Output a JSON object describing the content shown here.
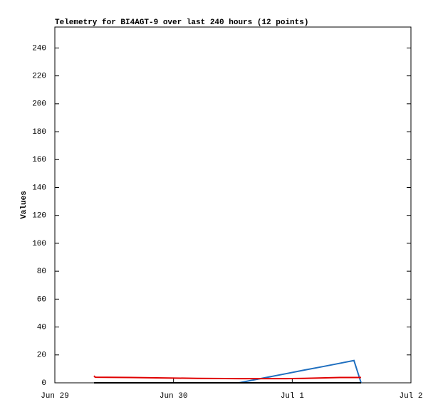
{
  "chart_data": {
    "type": "line",
    "title": "Telemetry for BI4AGT-9 over last 240 hours (12 points)",
    "ylabel": "Values",
    "x": [
      0.33,
      0.34,
      0.64,
      1.2,
      1.55,
      1.75,
      1.95,
      2.1,
      2.25,
      2.4,
      2.52,
      2.58
    ],
    "series": [
      {
        "color": "#1f6fbf",
        "values": [
          0,
          0,
          0,
          0,
          0,
          3.3,
          6.6,
          9.1,
          11.5,
          14,
          16,
          0
        ]
      },
      {
        "color": "#000000",
        "values": [
          0,
          0,
          0,
          0,
          0,
          0,
          0,
          0,
          0,
          0,
          0,
          0
        ]
      },
      {
        "color": "#e00000",
        "values": [
          5,
          4,
          3.8,
          3.2,
          3,
          3,
          3,
          3.2,
          3.5,
          3.8,
          3.8,
          3.8
        ]
      }
    ],
    "xlim": [
      0,
      3
    ],
    "xticks": [
      {
        "value": 0,
        "label": "Jun 29"
      },
      {
        "value": 1,
        "label": "Jun 30"
      },
      {
        "value": 2,
        "label": "Jul 1"
      },
      {
        "value": 3,
        "label": "Jul 2"
      }
    ],
    "ylim": [
      0,
      255
    ],
    "yticks": [
      0,
      20,
      40,
      60,
      80,
      100,
      120,
      140,
      160,
      180,
      200,
      220,
      240
    ]
  }
}
